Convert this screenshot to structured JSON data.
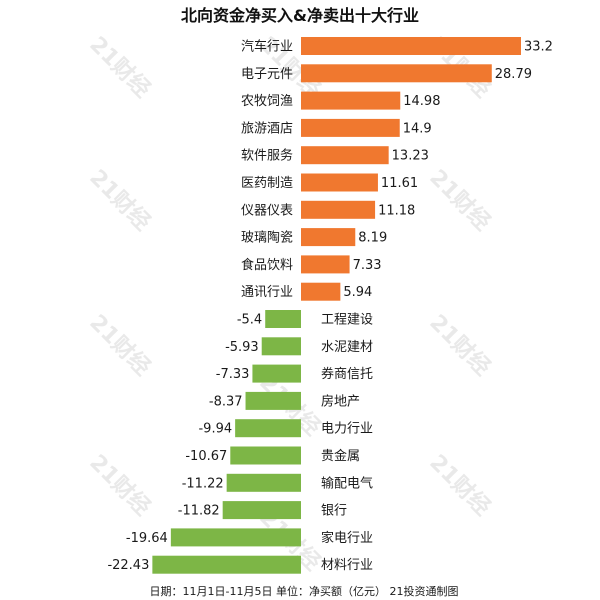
{
  "title": "北向资金净买入&净卖出十大行业",
  "footer": "日期：11月1日-11月5日  单位：净买额（亿元）  21投资通制图",
  "watermark": "21财经",
  "colors": {
    "positive": "#F0782F",
    "negative": "#7DB646"
  },
  "chart_data": {
    "type": "bar",
    "orientation": "horizontal",
    "title": "北向资金净买入&净卖出十大行业",
    "categories": [
      "汽车行业",
      "电子元件",
      "农牧饲渔",
      "旅游酒店",
      "软件服务",
      "医药制造",
      "仪器仪表",
      "玻璃陶瓷",
      "食品饮料",
      "通讯行业",
      "工程建设",
      "水泥建材",
      "券商信托",
      "房地产",
      "电力行业",
      "贵金属",
      "输配电气",
      "银行",
      "家电行业",
      "材料行业"
    ],
    "values": [
      33.2,
      28.79,
      14.98,
      14.9,
      13.23,
      11.61,
      11.18,
      8.19,
      7.33,
      5.94,
      -5.4,
      -5.93,
      -7.33,
      -8.37,
      -9.94,
      -10.67,
      -11.22,
      -11.82,
      -19.64,
      -22.43
    ],
    "value_labels": [
      "33.2",
      "28.79",
      "14.98",
      "14.9",
      "13.23",
      "11.61",
      "11.18",
      "8.19",
      "7.33",
      "5.94",
      "-5.4",
      "-5.93",
      "-7.33",
      "-8.37",
      "-9.94",
      "-10.67",
      "-11.22",
      "-11.82",
      "-19.64",
      "-22.43"
    ],
    "xlim": [
      -22.43,
      33.2
    ],
    "grid": false,
    "legend": "none"
  }
}
